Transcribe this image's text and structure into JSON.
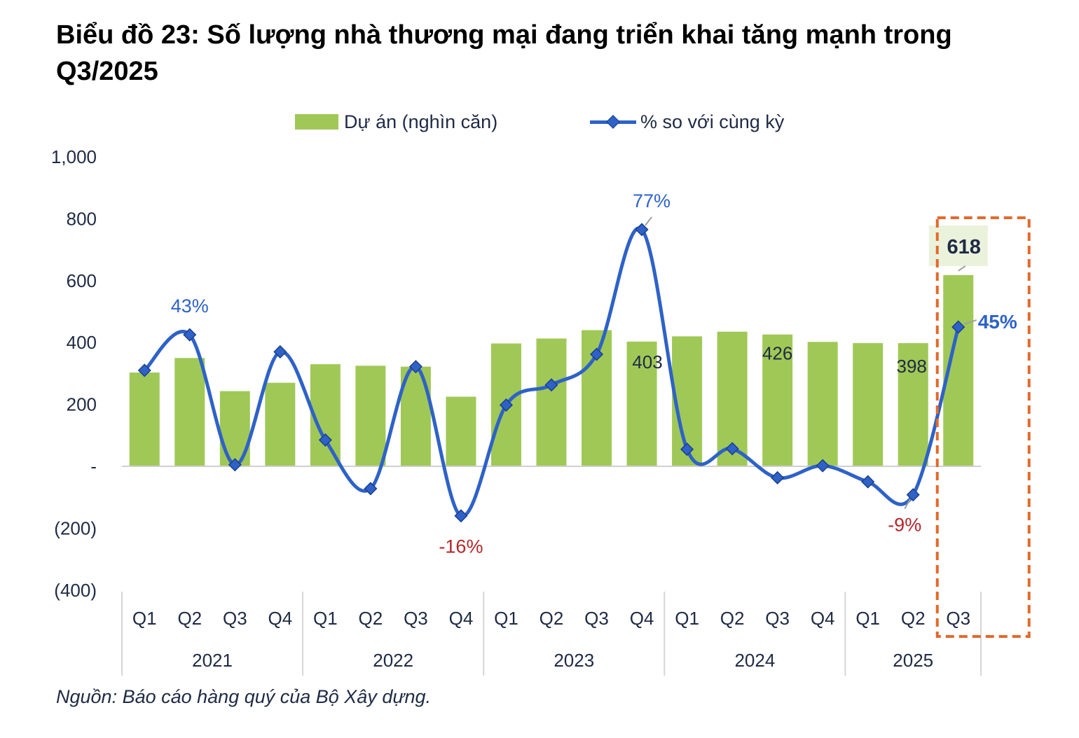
{
  "title": "Biểu đồ 23: Số lượng nhà thương mại đang triển khai tăng mạnh trong Q3/2025",
  "legend": {
    "bars": "Dự án (nghìn căn)",
    "line": "% so với cùng kỳ"
  },
  "source": "Nguồn: Báo cáo hàng quý của Bộ Xây dựng.",
  "colors": {
    "bar": "#a0c857",
    "line": "#2e62c8",
    "marker_stroke": "#1c3f8a",
    "negative_label": "#b3262a",
    "axis_text": "#1f2a44",
    "highlight_box": "#e26a2c",
    "label_bg": "#eaf2dc"
  },
  "chart_data": {
    "type": "bar",
    "categories": [
      "Q1",
      "Q2",
      "Q3",
      "Q4",
      "Q1",
      "Q2",
      "Q3",
      "Q4",
      "Q1",
      "Q2",
      "Q3",
      "Q4",
      "Q1",
      "Q2",
      "Q3",
      "Q4",
      "Q1",
      "Q2",
      "Q3"
    ],
    "groups": [
      {
        "label": "2021",
        "count": 4
      },
      {
        "label": "2022",
        "count": 4
      },
      {
        "label": "2023",
        "count": 4
      },
      {
        "label": "2024",
        "count": 4
      },
      {
        "label": "2025",
        "count": 3
      }
    ],
    "ylim": [
      -400,
      1000
    ],
    "yticks": [
      1000,
      800,
      600,
      400,
      200,
      0,
      -200,
      -400
    ],
    "ytick_labels": [
      "1,000",
      "800",
      "600",
      "400",
      "200",
      "-",
      "(200)",
      "(400)"
    ],
    "series": [
      {
        "name": "Dự án (nghìn căn)",
        "type": "bar",
        "values": [
          303,
          350,
          243,
          270,
          330,
          325,
          322,
          225,
          397,
          413,
          440,
          403,
          420,
          435,
          426,
          402,
          398,
          398,
          618
        ]
      },
      {
        "name": "% so với cùng kỳ",
        "type": "line",
        "values": [
          310,
          425,
          5,
          370,
          85,
          -72,
          322,
          -160,
          198,
          263,
          362,
          765,
          55,
          57,
          -37,
          2,
          -50,
          -92,
          450
        ]
      }
    ],
    "data_labels": [
      {
        "series": "bars",
        "index": 11,
        "text": "403"
      },
      {
        "series": "bars",
        "index": 14,
        "text": "426"
      },
      {
        "series": "bars",
        "index": 17,
        "text": "398"
      },
      {
        "series": "bars",
        "index": 18,
        "text": "618"
      },
      {
        "series": "line",
        "index": 1,
        "text": "43%"
      },
      {
        "series": "line",
        "index": 7,
        "text": "-16%"
      },
      {
        "series": "line",
        "index": 11,
        "text": "77%"
      },
      {
        "series": "line",
        "index": 17,
        "text": "-9%"
      },
      {
        "series": "line",
        "index": 18,
        "text": "45%"
      }
    ],
    "highlight_index": 18
  }
}
